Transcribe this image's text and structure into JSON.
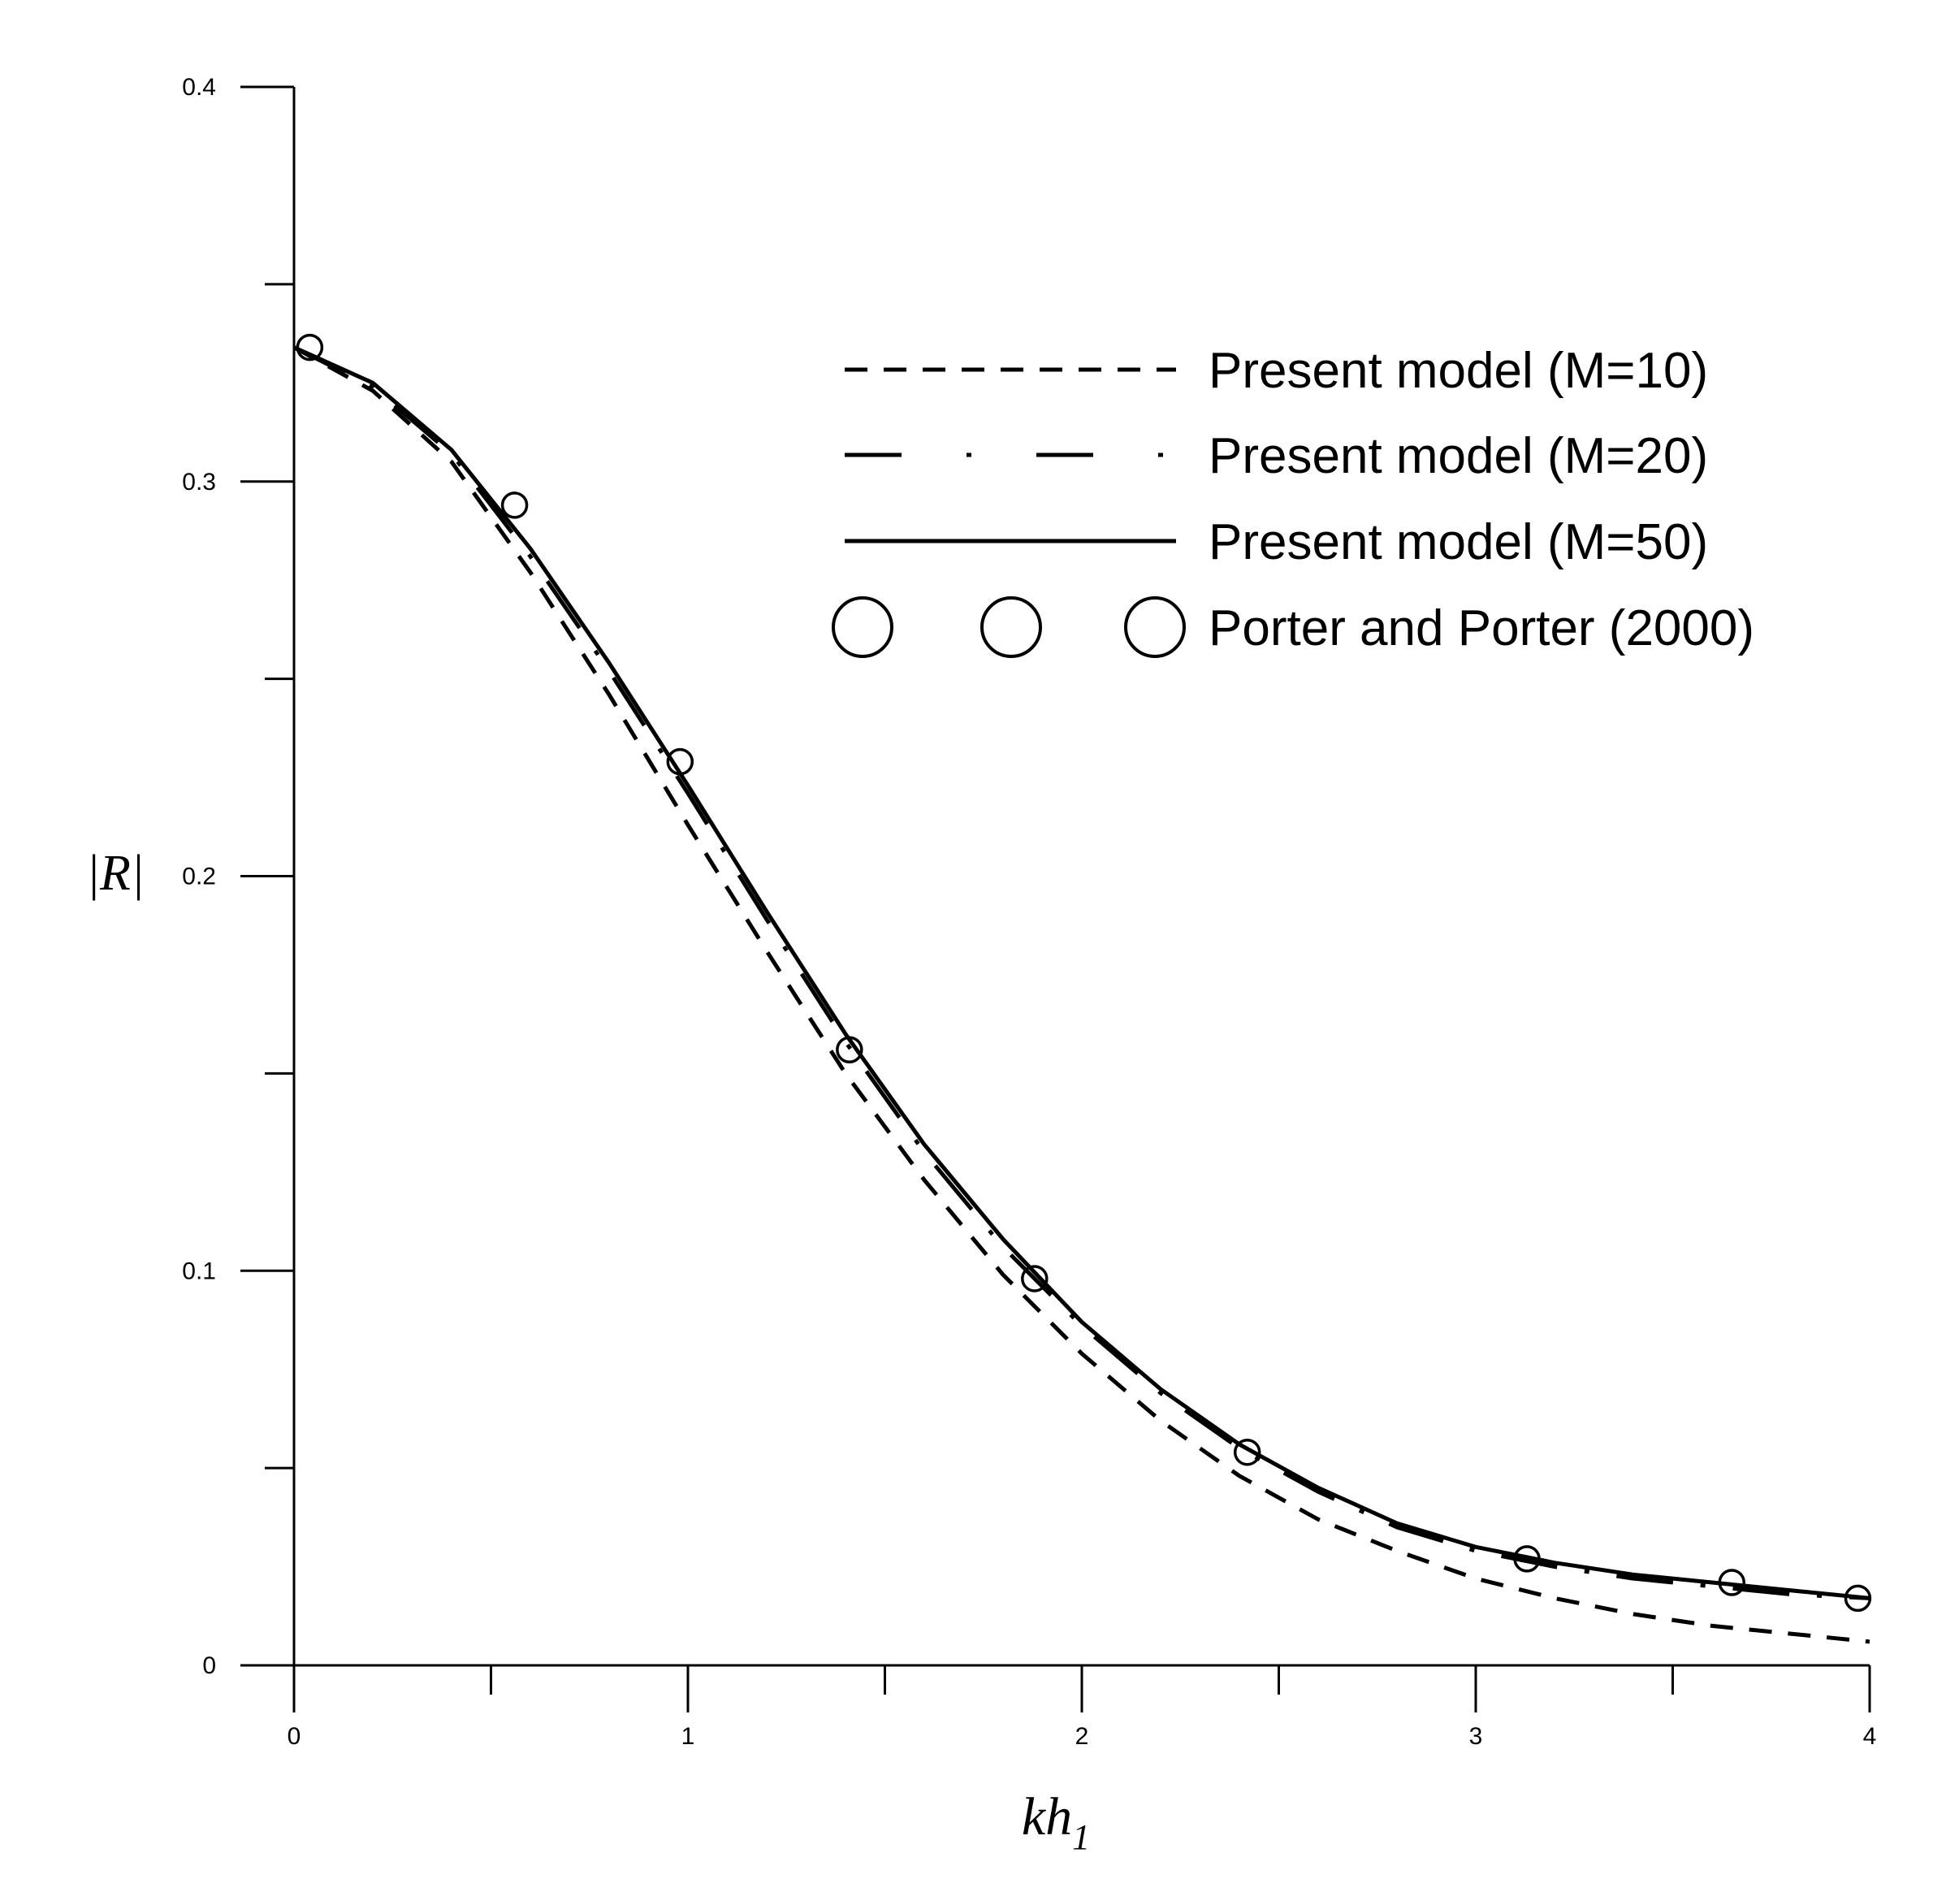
{
  "chart_data": {
    "type": "line",
    "xlabel": "kh",
    "xlabel_sub": "1",
    "ylabel": "|R|",
    "xlim": [
      0,
      4
    ],
    "ylim": [
      0,
      0.4
    ],
    "x_ticks": [
      "0",
      "1",
      "2",
      "3",
      "4"
    ],
    "y_ticks": [
      "0",
      "0.1",
      "0.2",
      "0.3",
      "0.4"
    ],
    "grid": false,
    "legend_position": "top-right",
    "series": [
      {
        "name": "Present model (M=10)",
        "style": "dashed",
        "color": "#000000",
        "x": [
          0,
          0.2,
          0.4,
          0.6,
          0.8,
          1.0,
          1.2,
          1.4,
          1.6,
          1.8,
          2.0,
          2.2,
          2.4,
          2.6,
          2.8,
          3.0,
          3.2,
          3.4,
          3.6,
          3.8,
          4.0
        ],
        "y": [
          0.334,
          0.323,
          0.305,
          0.277,
          0.246,
          0.213,
          0.181,
          0.15,
          0.123,
          0.099,
          0.079,
          0.062,
          0.048,
          0.037,
          0.029,
          0.022,
          0.017,
          0.013,
          0.01,
          0.008,
          0.006
        ]
      },
      {
        "name": "Present model (M=20)",
        "style": "dash-dot",
        "color": "#000000",
        "x": [
          0,
          0.2,
          0.4,
          0.6,
          0.8,
          1.0,
          1.2,
          1.4,
          1.6,
          1.8,
          2.0,
          2.2,
          2.4,
          2.6,
          2.8,
          3.0,
          3.2,
          3.4,
          3.6,
          3.8,
          4.0
        ],
        "y": [
          0.334,
          0.324,
          0.307,
          0.281,
          0.252,
          0.221,
          0.189,
          0.158,
          0.13,
          0.106,
          0.086,
          0.069,
          0.055,
          0.044,
          0.035,
          0.029,
          0.025,
          0.022,
          0.02,
          0.018,
          0.017
        ]
      },
      {
        "name": "Present model (M=50)",
        "style": "solid",
        "color": "#000000",
        "x": [
          0,
          0.2,
          0.4,
          0.6,
          0.8,
          1.0,
          1.2,
          1.4,
          1.6,
          1.8,
          2.0,
          2.2,
          2.4,
          2.6,
          2.8,
          3.0,
          3.2,
          3.4,
          3.6,
          3.8,
          4.0
        ],
        "y": [
          0.334,
          0.325,
          0.308,
          0.283,
          0.254,
          0.223,
          0.191,
          0.16,
          0.132,
          0.108,
          0.087,
          0.07,
          0.056,
          0.045,
          0.036,
          0.03,
          0.026,
          0.023,
          0.021,
          0.019,
          0.017
        ]
      },
      {
        "name": "Porter and Porter (2000)",
        "style": "markers",
        "marker": "open-circle",
        "color": "#000000",
        "x": [
          0.04,
          0.56,
          0.98,
          1.41,
          1.88,
          2.42,
          3.13,
          3.65,
          3.97
        ],
        "y": [
          0.334,
          0.294,
          0.229,
          0.156,
          0.098,
          0.054,
          0.027,
          0.021,
          0.017
        ]
      }
    ]
  }
}
